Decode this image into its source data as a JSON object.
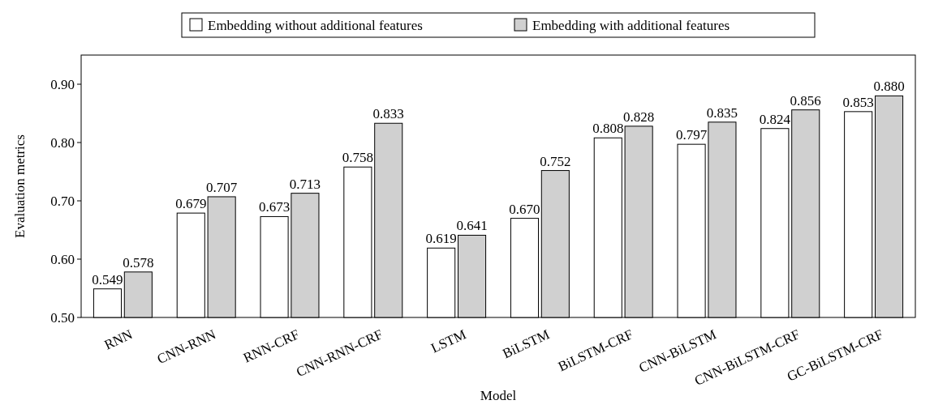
{
  "chart_data": {
    "type": "bar",
    "xlabel": "Model",
    "ylabel": "Evaluation metrics",
    "categories": [
      "RNN",
      "CNN-RNN",
      "RNN-CRF",
      "CNN-RNN-CRF",
      "LSTM",
      "BiLSTM",
      "BiLSTM-CRF",
      "CNN-BiLSTM",
      "CNN-BiLSTM-CRF",
      "GC-BiLSTM-CRF"
    ],
    "series": [
      {
        "name": "Embedding without additional features",
        "color": "#ffffff",
        "values": [
          0.549,
          0.679,
          0.673,
          0.758,
          0.619,
          0.67,
          0.808,
          0.797,
          0.824,
          0.853
        ],
        "value_labels": [
          "0.549",
          "0.679",
          "0.673",
          "0.758",
          "0.619",
          "0.670",
          "0.808",
          "0.797",
          "0.824",
          "0.853"
        ]
      },
      {
        "name": "Embedding with additional features",
        "color": "#d0d0d0",
        "values": [
          0.578,
          0.707,
          0.713,
          0.833,
          0.641,
          0.752,
          0.828,
          0.835,
          0.856,
          0.88
        ],
        "value_labels": [
          "0.578",
          "0.707",
          "0.713",
          "0.833",
          "0.641",
          "0.752",
          "0.828",
          "0.835",
          "0.856",
          "0.880"
        ]
      }
    ],
    "ylim": [
      0.5,
      0.95
    ],
    "yticks": [
      {
        "value": 0.5,
        "label": "0.50"
      },
      {
        "value": 0.6,
        "label": "0.60"
      },
      {
        "value": 0.7,
        "label": "0.70"
      },
      {
        "value": 0.8,
        "label": "0.80"
      },
      {
        "value": 0.9,
        "label": "0.90"
      }
    ],
    "legend": "top",
    "grid": false
  }
}
